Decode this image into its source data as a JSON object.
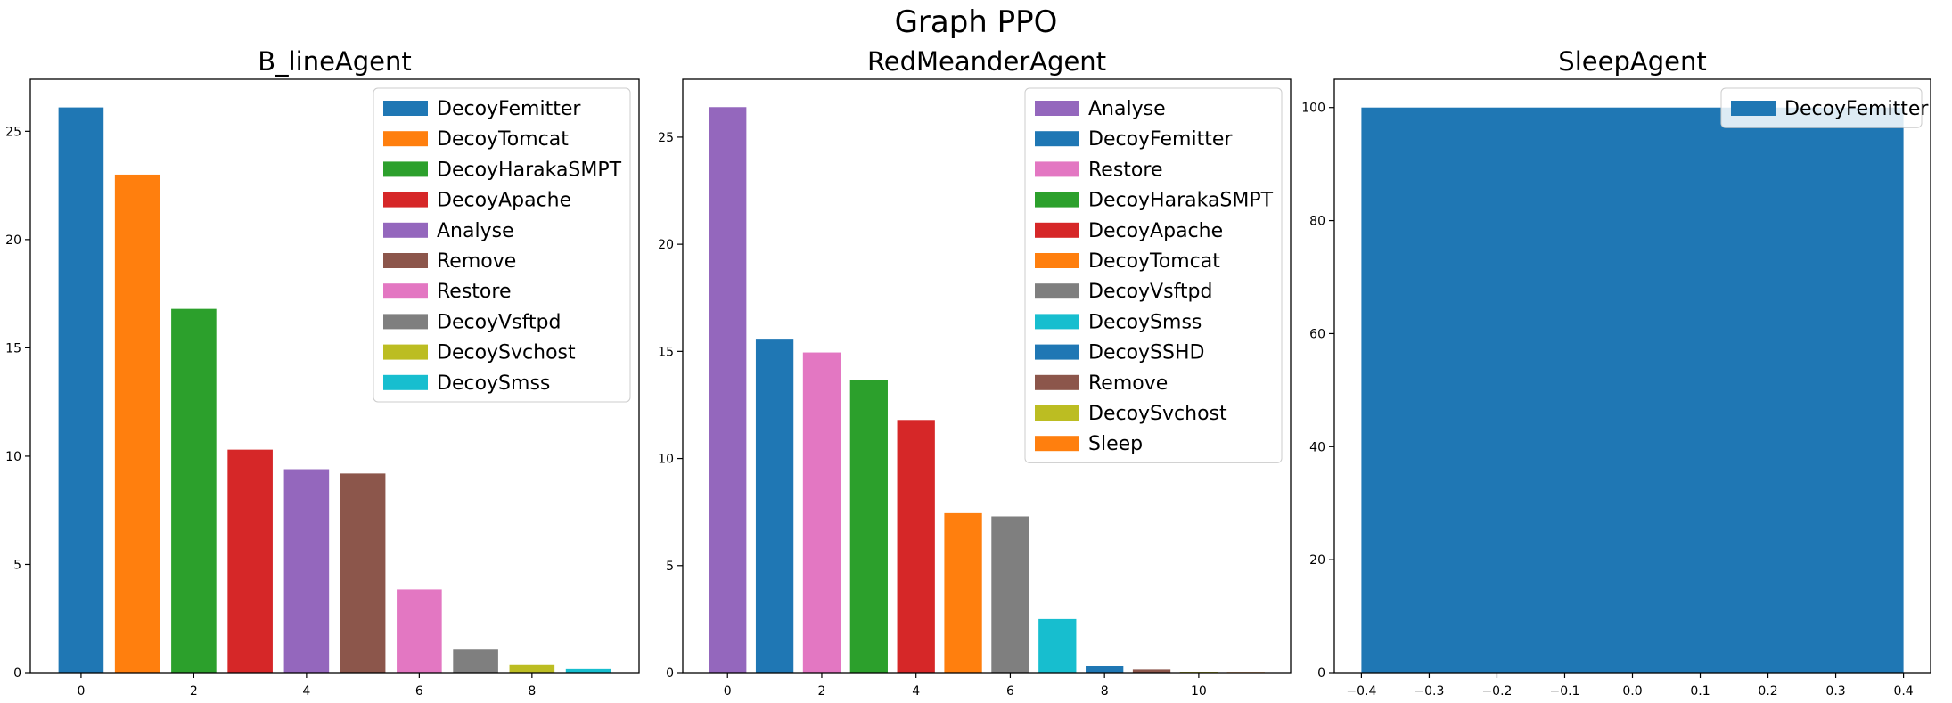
{
  "suptitle": "Graph PPO",
  "chart_data": [
    {
      "type": "bar",
      "title": "B_lineAgent",
      "x": [
        0,
        1,
        2,
        3,
        4,
        5,
        6,
        7,
        8,
        9
      ],
      "categories": [
        "DecoyFemitter",
        "DecoyTomcat",
        "DecoyHarakaSMPT",
        "DecoyApache",
        "Analyse",
        "Remove",
        "Restore",
        "DecoyVsftpd",
        "DecoySvchost",
        "DecoySmss"
      ],
      "values": [
        26.1,
        23.0,
        16.8,
        10.3,
        9.4,
        9.2,
        3.85,
        1.1,
        0.38,
        0.17
      ],
      "colors": [
        "#1f77b4",
        "#ff7f0e",
        "#2ca02c",
        "#d62728",
        "#9467bd",
        "#8c564b",
        "#e377c2",
        "#7f7f7f",
        "#bcbd22",
        "#17becf"
      ],
      "xticks": [
        0,
        2,
        4,
        6,
        8
      ],
      "yticks": [
        0,
        5,
        10,
        15,
        20,
        25
      ],
      "xlim": [
        -0.9,
        9.9
      ],
      "ylim": [
        0,
        27.4
      ],
      "legend_loc": "upper right"
    },
    {
      "type": "bar",
      "title": "RedMeanderAgent",
      "x": [
        0,
        1,
        2,
        3,
        4,
        5,
        6,
        7,
        8,
        9,
        10,
        11
      ],
      "categories": [
        "Analyse",
        "DecoyFemitter",
        "Restore",
        "DecoyHarakaSMPT",
        "DecoyApache",
        "DecoyTomcat",
        "DecoyVsftpd",
        "DecoySmss",
        "DecoySSHD",
        "Remove",
        "DecoySvchost",
        "Sleep"
      ],
      "values": [
        26.4,
        15.55,
        14.95,
        13.65,
        11.8,
        7.45,
        7.3,
        2.5,
        0.3,
        0.15,
        0.04,
        0.03
      ],
      "colors": [
        "#9467bd",
        "#1f77b4",
        "#e377c2",
        "#2ca02c",
        "#d62728",
        "#ff7f0e",
        "#7f7f7f",
        "#17becf",
        "#1f77b4",
        "#8c564b",
        "#bcbd22",
        "#ff7f0e"
      ],
      "xticks": [
        0,
        2,
        4,
        6,
        8,
        10
      ],
      "yticks": [
        0,
        5,
        10,
        15,
        20,
        25
      ],
      "xlim": [
        -0.95,
        11.95
      ],
      "ylim": [
        0,
        27.7
      ],
      "legend_loc": "upper right"
    },
    {
      "type": "bar",
      "title": "SleepAgent",
      "x": [
        0
      ],
      "categories": [
        "DecoyFemitter"
      ],
      "values": [
        100
      ],
      "colors": [
        "#1f77b4"
      ],
      "bar_width": 0.8,
      "xticks": [
        -0.4,
        -0.3,
        -0.2,
        -0.1,
        0.0,
        0.1,
        0.2,
        0.3,
        0.4
      ],
      "xtick_labels": [
        "−0.4",
        "−0.3",
        "−0.2",
        "−0.1",
        "0.0",
        "0.1",
        "0.2",
        "0.3",
        "0.4"
      ],
      "yticks": [
        0,
        20,
        40,
        60,
        80,
        100
      ],
      "xlim": [
        -0.44,
        0.44
      ],
      "ylim": [
        0,
        105
      ],
      "legend_loc": "upper right"
    }
  ]
}
